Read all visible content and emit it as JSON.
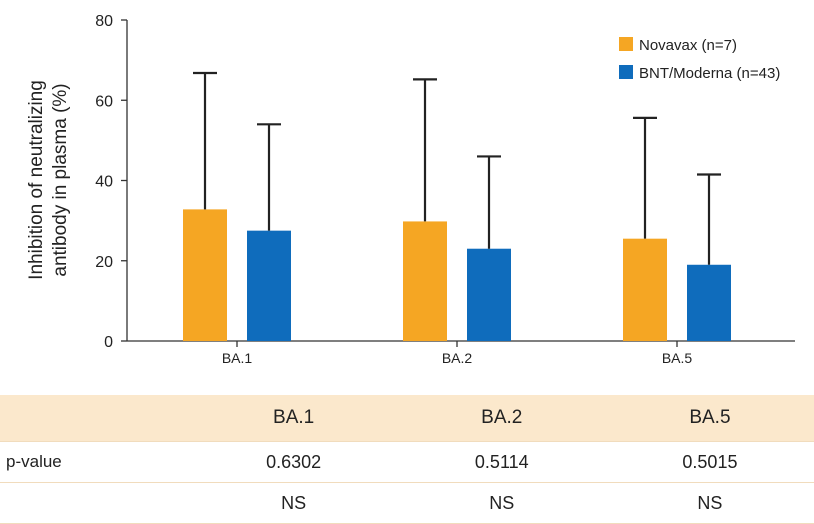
{
  "chart_data": {
    "type": "bar",
    "categories": [
      "BA.1",
      "BA.2",
      "BA.5"
    ],
    "series": [
      {
        "name": "Novavax (n=7)",
        "color": "#f5a623",
        "values": [
          32.8,
          29.8,
          25.5
        ],
        "error_upper": [
          66.8,
          65.2,
          55.6
        ]
      },
      {
        "name": "BNT/Moderna (n=43)",
        "color": "#0f6cbc",
        "values": [
          27.5,
          23.0,
          19.0
        ],
        "error_upper": [
          54.0,
          46.0,
          41.5
        ]
      }
    ],
    "xlabel": "",
    "ylabel_lines": [
      "Inhibition of neutralizing",
      "antibody in plasma (%)"
    ],
    "ylim": [
      0,
      80
    ],
    "yticks": [
      "0",
      "20",
      "40",
      "60",
      "80"
    ],
    "grid": false,
    "legend": "top-right"
  },
  "stats_table": {
    "columns": [
      "BA.1",
      "BA.2",
      "BA.5"
    ],
    "rows": [
      {
        "label": "p-value",
        "values": [
          "0.6302",
          "0.5114",
          "0.5015"
        ]
      },
      {
        "label": "",
        "values": [
          "NS",
          "NS",
          "NS"
        ]
      }
    ]
  }
}
